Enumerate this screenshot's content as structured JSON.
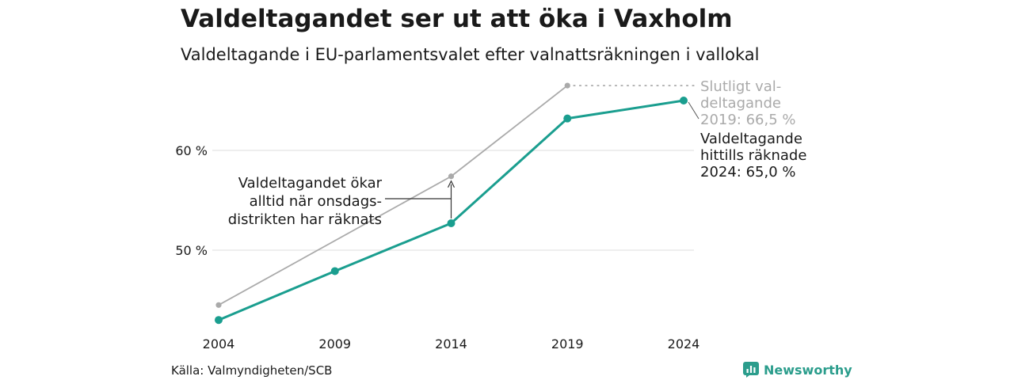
{
  "header": {
    "title": "Valdeltagandet ser ut att öka i Vaxholm",
    "subtitle": "Valdeltagande i EU-parlamentsvalet efter valnattsräkningen i vallokal"
  },
  "chart_data": {
    "type": "line",
    "x": [
      2004,
      2009,
      2014,
      2019,
      2024
    ],
    "ylim": [
      40,
      70
    ],
    "yticks": [
      50,
      60
    ],
    "ytick_labels": [
      "50 %",
      "60 %"
    ],
    "grid": true,
    "series": [
      {
        "key": "final",
        "values": [
          44.5,
          null,
          57.4,
          66.5,
          null
        ],
        "color": "#aaaaaa"
      },
      {
        "key": "counted",
        "values": [
          43.0,
          47.9,
          52.7,
          63.2,
          65.0
        ],
        "color": "#1a9e8f"
      }
    ],
    "annotations": {
      "final_label": [
        "Slutligt val-",
        "deltagande",
        "2019: 66,5 %"
      ],
      "counted_label": [
        "Valdeltagande",
        "hittills räknade",
        "2024: 65,0 %"
      ],
      "increase_note": [
        "Valdeltagandet ökar",
        "alltid när onsdags-",
        "distrikten har räknats"
      ]
    }
  },
  "footer": {
    "source": "Källa: Valmyndigheten/SCB",
    "brand": "Newsworthy",
    "brand_icon": "newsworthy-logo-icon",
    "brand_color": "#2b9d8c"
  }
}
